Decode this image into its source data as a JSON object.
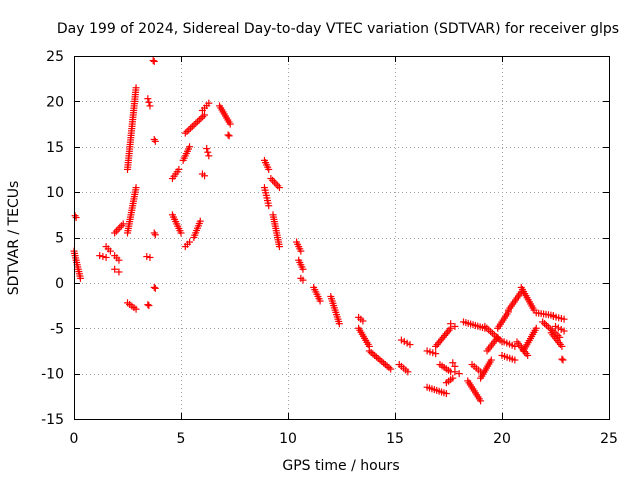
{
  "chart_data": {
    "type": "scatter",
    "title": "Day 199 of 2024, Sidereal Day-to-day VTEC variation (SDTVAR) for receiver glps",
    "xlabel": "GPS time / hours",
    "ylabel": "SDTVAR / TECUs",
    "xlim": [
      0,
      25
    ],
    "ylim": [
      -15,
      25
    ],
    "xticks": [
      0,
      5,
      10,
      15,
      20,
      25
    ],
    "yticks": [
      -15,
      -10,
      -5,
      0,
      5,
      10,
      15,
      20,
      25
    ],
    "grid": true,
    "marker": "plus",
    "marker_color": "#ff0000",
    "segments": [
      {
        "x": [
          0.0,
          0.3
        ],
        "y": [
          3.5,
          0.5
        ]
      },
      {
        "x": [
          0.05,
          0.1
        ],
        "y": [
          7.4,
          7.2
        ]
      },
      {
        "x": [
          1.2,
          1.5,
          1.6
        ],
        "y": [
          3.0,
          2.8,
          2.5
        ]
      },
      {
        "x": [
          1.5,
          1.7
        ],
        "y": [
          4.0,
          3.5
        ]
      },
      {
        "x": [
          1.9,
          2.1
        ],
        "y": [
          3.0,
          2.5
        ]
      },
      {
        "x": [
          1.9,
          2.1
        ],
        "y": [
          1.5,
          1.2
        ]
      },
      {
        "x": [
          1.9,
          2.3
        ],
        "y": [
          5.5,
          6.5
        ]
      },
      {
        "x": [
          2.5,
          2.9
        ],
        "y": [
          5.5,
          10.5
        ]
      },
      {
        "x": [
          2.5,
          2.9
        ],
        "y": [
          12.5,
          21.5
        ]
      },
      {
        "x": [
          2.5,
          2.9
        ],
        "y": [
          -2.2,
          -2.9
        ]
      },
      {
        "x": [
          3.4,
          3.55
        ],
        "y": [
          2.9,
          2.8
        ]
      },
      {
        "x": [
          3.45,
          3.55
        ],
        "y": [
          20.3,
          19.5
        ]
      },
      {
        "x": [
          3.7,
          3.75
        ],
        "y": [
          24.5,
          24.4
        ]
      },
      {
        "x": [
          3.75,
          3.8
        ],
        "y": [
          15.8,
          15.6
        ]
      },
      {
        "x": [
          3.75,
          3.8
        ],
        "y": [
          5.5,
          5.3
        ]
      },
      {
        "x": [
          3.75,
          3.8
        ],
        "y": [
          -0.5,
          -0.6
        ]
      },
      {
        "x": [
          3.45,
          3.5
        ],
        "y": [
          -2.4,
          -2.5
        ]
      },
      {
        "x": [
          4.6,
          4.9
        ],
        "y": [
          11.5,
          12.5
        ]
      },
      {
        "x": [
          4.6,
          5.0
        ],
        "y": [
          7.5,
          5.5
        ]
      },
      {
        "x": [
          5.1,
          5.4
        ],
        "y": [
          13.5,
          15.0
        ]
      },
      {
        "x": [
          5.2,
          5.4
        ],
        "y": [
          4.0,
          4.5
        ]
      },
      {
        "x": [
          5.2,
          6.1
        ],
        "y": [
          16.5,
          18.5
        ]
      },
      {
        "x": [
          5.6,
          5.9
        ],
        "y": [
          5.0,
          6.8
        ]
      },
      {
        "x": [
          6.0,
          6.3
        ],
        "y": [
          19.0,
          19.8
        ]
      },
      {
        "x": [
          6.0,
          6.1
        ],
        "y": [
          12.0,
          11.8
        ]
      },
      {
        "x": [
          6.2,
          6.3
        ],
        "y": [
          14.8,
          14.0
        ]
      },
      {
        "x": [
          6.8,
          7.3
        ],
        "y": [
          19.5,
          17.5
        ]
      },
      {
        "x": [
          7.2,
          7.25
        ],
        "y": [
          16.3,
          16.2
        ]
      },
      {
        "x": [
          8.9,
          9.1
        ],
        "y": [
          13.5,
          12.5
        ]
      },
      {
        "x": [
          8.9,
          9.1
        ],
        "y": [
          10.5,
          8.5
        ]
      },
      {
        "x": [
          9.2,
          9.6
        ],
        "y": [
          11.5,
          10.5
        ]
      },
      {
        "x": [
          9.3,
          9.6
        ],
        "y": [
          7.5,
          4.0
        ]
      },
      {
        "x": [
          10.4,
          10.6
        ],
        "y": [
          4.5,
          3.5
        ]
      },
      {
        "x": [
          10.5,
          10.7
        ],
        "y": [
          2.5,
          1.5
        ]
      },
      {
        "x": [
          10.6,
          10.7
        ],
        "y": [
          0.5,
          0.3
        ]
      },
      {
        "x": [
          11.2,
          11.5
        ],
        "y": [
          -0.5,
          -2.0
        ]
      },
      {
        "x": [
          12.0,
          12.4
        ],
        "y": [
          -1.5,
          -4.5
        ]
      },
      {
        "x": [
          13.3,
          13.5
        ],
        "y": [
          -3.8,
          -4.2
        ]
      },
      {
        "x": [
          13.3,
          13.8
        ],
        "y": [
          -5.0,
          -7.0
        ]
      },
      {
        "x": [
          13.8,
          14.8
        ],
        "y": [
          -7.5,
          -9.5
        ]
      },
      {
        "x": [
          15.2,
          15.6
        ],
        "y": [
          -9.0,
          -9.8
        ]
      },
      {
        "x": [
          15.3,
          15.7
        ],
        "y": [
          -6.3,
          -6.8
        ]
      },
      {
        "x": [
          16.5,
          16.9
        ],
        "y": [
          -7.5,
          -7.8
        ]
      },
      {
        "x": [
          16.5,
          17.4
        ],
        "y": [
          -11.5,
          -12.2
        ]
      },
      {
        "x": [
          16.9,
          17.6
        ],
        "y": [
          -7.0,
          -5.0
        ]
      },
      {
        "x": [
          17.1,
          17.6
        ],
        "y": [
          -9.0,
          -9.8
        ]
      },
      {
        "x": [
          17.4,
          17.7
        ],
        "y": [
          -11.0,
          -10.5
        ]
      },
      {
        "x": [
          17.6,
          17.8
        ],
        "y": [
          -4.5,
          -4.8
        ]
      },
      {
        "x": [
          17.7,
          17.8
        ],
        "y": [
          -8.8,
          -9.2
        ]
      },
      {
        "x": [
          17.8,
          18.0
        ],
        "y": [
          -9.8,
          -10.0
        ]
      },
      {
        "x": [
          18.2,
          19.2
        ],
        "y": [
          -4.3,
          -5.0
        ]
      },
      {
        "x": [
          18.4,
          19.0
        ],
        "y": [
          -10.8,
          -13.0
        ]
      },
      {
        "x": [
          18.6,
          19.0
        ],
        "y": [
          -9.0,
          -9.8
        ]
      },
      {
        "x": [
          19.2,
          20.0
        ],
        "y": [
          -4.8,
          -6.5
        ]
      },
      {
        "x": [
          19.0,
          19.5
        ],
        "y": [
          -10.5,
          -8.5
        ]
      },
      {
        "x": [
          19.3,
          19.8
        ],
        "y": [
          -7.5,
          -6.0
        ]
      },
      {
        "x": [
          19.8,
          20.3
        ],
        "y": [
          -5.0,
          -3.2
        ]
      },
      {
        "x": [
          20.1,
          20.6
        ],
        "y": [
          -6.5,
          -7.0
        ]
      },
      {
        "x": [
          20.3,
          20.9
        ],
        "y": [
          -3.0,
          -1.0
        ]
      },
      {
        "x": [
          20.0,
          20.6
        ],
        "y": [
          -8.0,
          -8.5
        ]
      },
      {
        "x": [
          20.7,
          21.2
        ],
        "y": [
          -6.5,
          -8.0
        ]
      },
      {
        "x": [
          20.9,
          21.5
        ],
        "y": [
          -0.5,
          -3.0
        ]
      },
      {
        "x": [
          21.0,
          21.6
        ],
        "y": [
          -7.5,
          -5.0
        ]
      },
      {
        "x": [
          21.6,
          22.4
        ],
        "y": [
          -3.3,
          -3.6
        ]
      },
      {
        "x": [
          21.9,
          22.7
        ],
        "y": [
          -4.3,
          -6.0
        ]
      },
      {
        "x": [
          22.3,
          22.8
        ],
        "y": [
          -5.5,
          -7.0
        ]
      },
      {
        "x": [
          22.4,
          22.9
        ],
        "y": [
          -3.7,
          -4.0
        ]
      },
      {
        "x": [
          22.5,
          22.9
        ],
        "y": [
          -4.8,
          -5.3
        ]
      },
      {
        "x": [
          22.8,
          22.85
        ],
        "y": [
          -8.4,
          -8.5
        ]
      }
    ]
  }
}
